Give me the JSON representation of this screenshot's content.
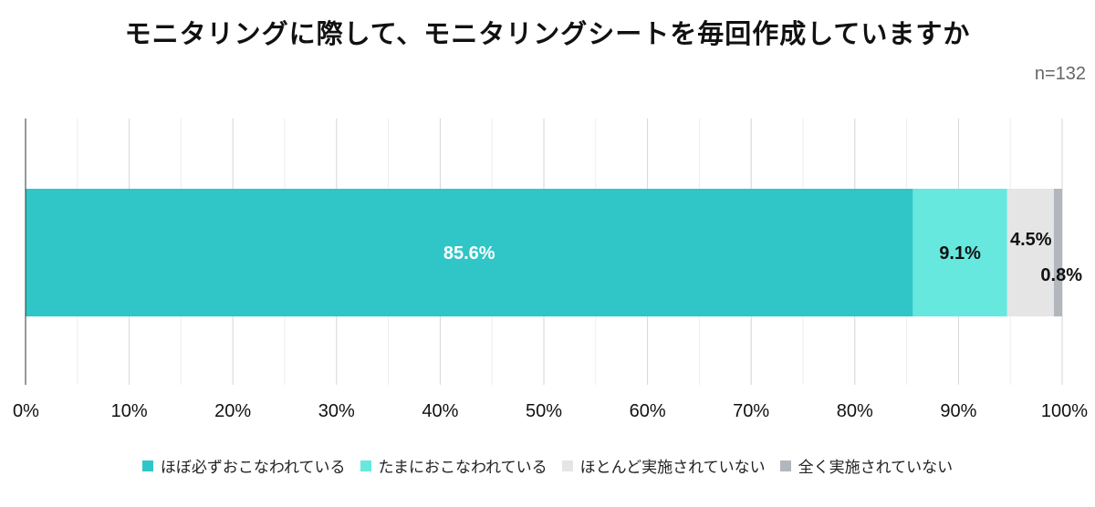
{
  "chart_data": {
    "type": "bar",
    "orientation": "horizontal",
    "stacked": true,
    "title": "モニタリングに際して、モニタリングシートを毎回作成していますか",
    "note": "n=132",
    "xlim": [
      0,
      100
    ],
    "x_ticks": [
      "0%",
      "10%",
      "20%",
      "30%",
      "40%",
      "50%",
      "60%",
      "70%",
      "80%",
      "90%",
      "100%"
    ],
    "grid": true,
    "legend_position": "bottom",
    "series": [
      {
        "name": "ほぼ必ずおこなわれている",
        "value": 85.6,
        "label": "85.6%",
        "color": "#30c6c8",
        "label_color": "#ffffff"
      },
      {
        "name": "たまにおこなわれている",
        "value": 9.1,
        "label": "9.1%",
        "color": "#66e8df",
        "label_color": "#111111"
      },
      {
        "name": "ほとんど実施されていない",
        "value": 4.5,
        "label": "4.5%",
        "color": "#e5e5e5",
        "label_color": "#111111"
      },
      {
        "name": "全く実施されていない",
        "value": 0.8,
        "label": "0.8%",
        "color": "#b2b7be",
        "label_color": "#111111"
      }
    ]
  }
}
